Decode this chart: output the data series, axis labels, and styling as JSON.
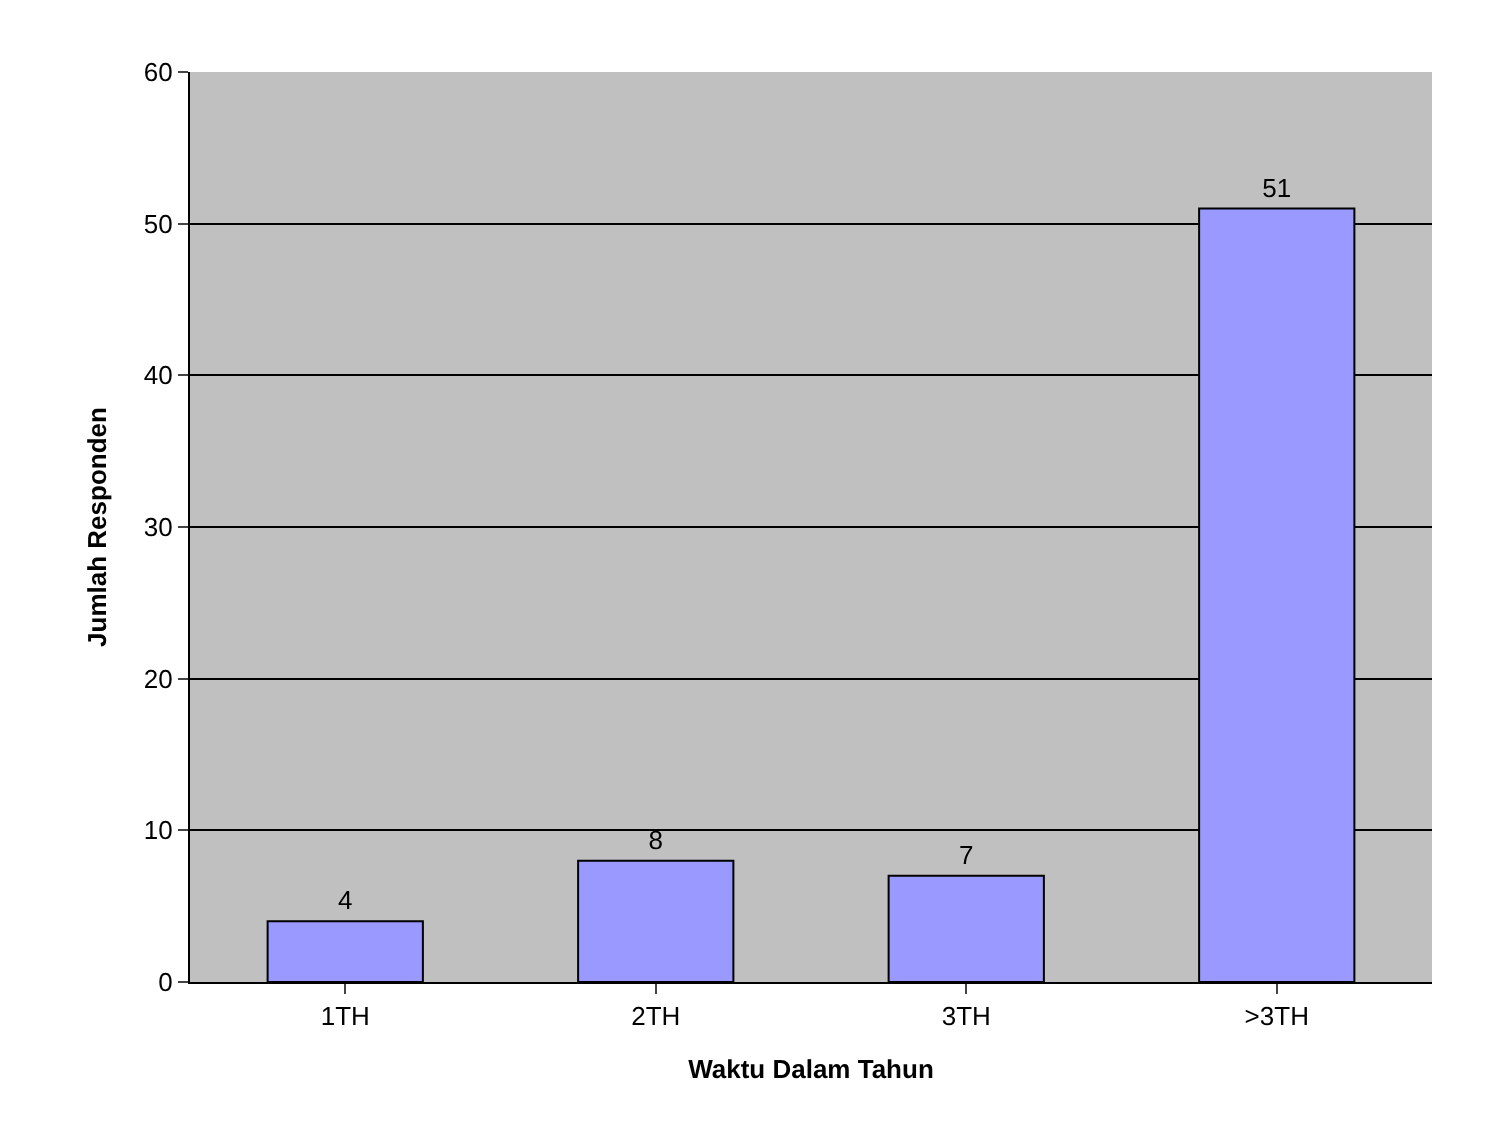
{
  "chart_data": {
    "type": "bar",
    "xlabel": "Waktu Dalam Tahun",
    "ylabel": "Jumlah Responden",
    "categories": [
      "1TH",
      "2TH",
      "3TH",
      ">3TH"
    ],
    "values": [
      4,
      8,
      7,
      51
    ],
    "color": "#9999ff",
    "ylim": [
      0,
      60
    ],
    "yticks": [
      0,
      10,
      20,
      30,
      40,
      50,
      60
    ],
    "grid": "y",
    "legend": false,
    "data_labels": true
  }
}
